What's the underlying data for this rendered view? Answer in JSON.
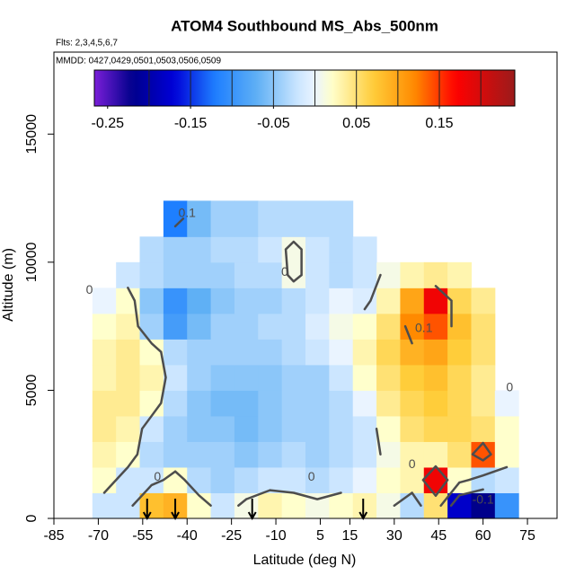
{
  "chart_data": {
    "type": "heatmap",
    "title": "ATOM4 Southbound MS_Abs_500nm",
    "subtitle": "Flts: 2,3,4,5,6,7",
    "annotation": "MMDD: 0427,0429,0501,0503,0506,0509",
    "x_label": "Latitude (deg N)",
    "y_label": "Altitude (m)",
    "xlim": [
      -85,
      85
    ],
    "xticks": [
      -85,
      -70,
      -55,
      -40,
      -25,
      -10,
      5,
      15,
      30,
      45,
      60,
      75
    ],
    "ylim": [
      0,
      18200
    ],
    "yticks": [
      0,
      5000,
      10000,
      15000
    ],
    "lat_bins": [
      -72,
      -64,
      -56,
      -48,
      -40,
      -32,
      -24,
      -16,
      -8,
      0,
      8,
      16,
      24,
      32,
      40,
      48,
      56,
      64,
      72
    ],
    "alt_bins": [
      0,
      1000,
      2000,
      3000,
      4000,
      5000,
      6000,
      7000,
      8000,
      9000,
      10000,
      11000,
      12400
    ],
    "values": [
      [
        -0.02,
        -0.02,
        0.08,
        0.09,
        0.02,
        -0.02,
        0.01,
        0.03,
        0.02,
        0.01,
        0.02,
        0.03,
        0.01,
        -0.03,
        0.05,
        -0.18,
        -0.22,
        -0.1
      ],
      [
        0.02,
        -0.02,
        -0.02,
        0.02,
        -0.03,
        -0.04,
        -0.03,
        -0.02,
        -0.02,
        -0.03,
        -0.02,
        0.0,
        0.02,
        0.03,
        0.18,
        0.02,
        -0.03,
        -0.02
      ],
      [
        0.03,
        0.02,
        -0.03,
        -0.04,
        -0.04,
        -0.04,
        -0.05,
        -0.04,
        -0.03,
        -0.04,
        -0.03,
        -0.02,
        0.01,
        0.03,
        0.03,
        0.05,
        0.14,
        0.02
      ],
      [
        0.04,
        0.03,
        -0.02,
        -0.04,
        -0.05,
        -0.05,
        -0.06,
        -0.05,
        -0.04,
        -0.04,
        -0.03,
        -0.02,
        0.02,
        0.05,
        0.06,
        0.06,
        0.05,
        0.02
      ],
      [
        0.04,
        0.04,
        0.02,
        -0.03,
        -0.05,
        -0.06,
        -0.06,
        -0.05,
        -0.04,
        -0.04,
        -0.03,
        0.0,
        0.04,
        0.06,
        0.07,
        0.06,
        0.04,
        0.0
      ],
      [
        0.03,
        0.04,
        0.03,
        -0.02,
        -0.04,
        -0.05,
        -0.05,
        -0.05,
        -0.04,
        -0.04,
        -0.02,
        0.02,
        0.05,
        0.07,
        0.08,
        0.06,
        0.04,
        null
      ],
      [
        0.03,
        0.04,
        0.02,
        -0.03,
        -0.04,
        -0.04,
        -0.04,
        -0.04,
        -0.03,
        -0.02,
        0.0,
        0.03,
        0.06,
        0.09,
        0.1,
        0.07,
        0.05,
        null
      ],
      [
        0.02,
        0.03,
        -0.04,
        -0.09,
        -0.06,
        -0.04,
        -0.04,
        -0.03,
        -0.03,
        -0.01,
        0.01,
        0.02,
        0.05,
        0.12,
        0.14,
        0.08,
        0.05,
        null
      ],
      [
        0.0,
        0.02,
        -0.05,
        -0.1,
        -0.07,
        -0.05,
        -0.04,
        -0.04,
        -0.03,
        -0.02,
        0.0,
        -0.01,
        0.03,
        0.1,
        0.18,
        0.06,
        0.04,
        null
      ],
      [
        null,
        -0.02,
        -0.03,
        -0.04,
        -0.04,
        -0.04,
        -0.03,
        -0.03,
        0.01,
        -0.02,
        -0.03,
        -0.02,
        0.01,
        0.03,
        0.04,
        0.03,
        null,
        null
      ],
      [
        null,
        null,
        -0.03,
        -0.04,
        -0.04,
        -0.03,
        -0.03,
        -0.02,
        0.01,
        -0.02,
        -0.03,
        -0.02,
        null,
        null,
        null,
        null,
        null,
        null
      ],
      [
        null,
        null,
        null,
        -0.12,
        -0.06,
        -0.04,
        -0.04,
        -0.03,
        -0.03,
        -0.03,
        -0.03,
        null,
        null,
        null,
        null,
        null,
        null,
        null
      ]
    ],
    "colormap": [
      [
        -0.266,
        "#7a1fd8"
      ],
      [
        -0.22,
        "#00008b"
      ],
      [
        -0.17,
        "#0000d8"
      ],
      [
        -0.12,
        "#1e7fff"
      ],
      [
        -0.07,
        "#5fb0f5"
      ],
      [
        -0.02,
        "#cce6ff"
      ],
      [
        0.0,
        "#eaf4ff"
      ],
      [
        0.02,
        "#ffffcc"
      ],
      [
        0.07,
        "#ffcd3a"
      ],
      [
        0.12,
        "#ff8a00"
      ],
      [
        0.17,
        "#ff0000"
      ],
      [
        0.241,
        "#9b1b1b"
      ]
    ],
    "clim": [
      -0.266,
      0.241
    ],
    "colorbar_ticks": [
      -0.25,
      -0.15,
      -0.05,
      0.05,
      0.15
    ],
    "colorbar_levels": [
      -0.2,
      -0.15,
      -0.1,
      -0.05,
      0,
      0.05,
      0.1,
      0.15,
      0.2
    ],
    "contour_levels": [
      -0.1,
      0,
      0.1
    ],
    "contour_color": "#4d4d4d",
    "contour_labels": [
      {
        "text": "0.1",
        "lat": -40,
        "alt": 11900
      },
      {
        "text": "0",
        "lat": -7,
        "alt": 9600
      },
      {
        "text": "0",
        "lat": -73,
        "alt": 8900
      },
      {
        "text": "0.1",
        "lat": 40,
        "alt": 7400
      },
      {
        "text": "0",
        "lat": 69,
        "alt": 5100
      },
      {
        "text": "0",
        "lat": -50,
        "alt": 1600
      },
      {
        "text": "0",
        "lat": 2,
        "alt": 1600
      },
      {
        "text": "0",
        "lat": 36,
        "alt": 2100
      },
      {
        "text": "-0.1",
        "lat": 60,
        "alt": 700
      }
    ],
    "flight_markers": [
      -53.5,
      -44,
      -18,
      19.5
    ]
  }
}
